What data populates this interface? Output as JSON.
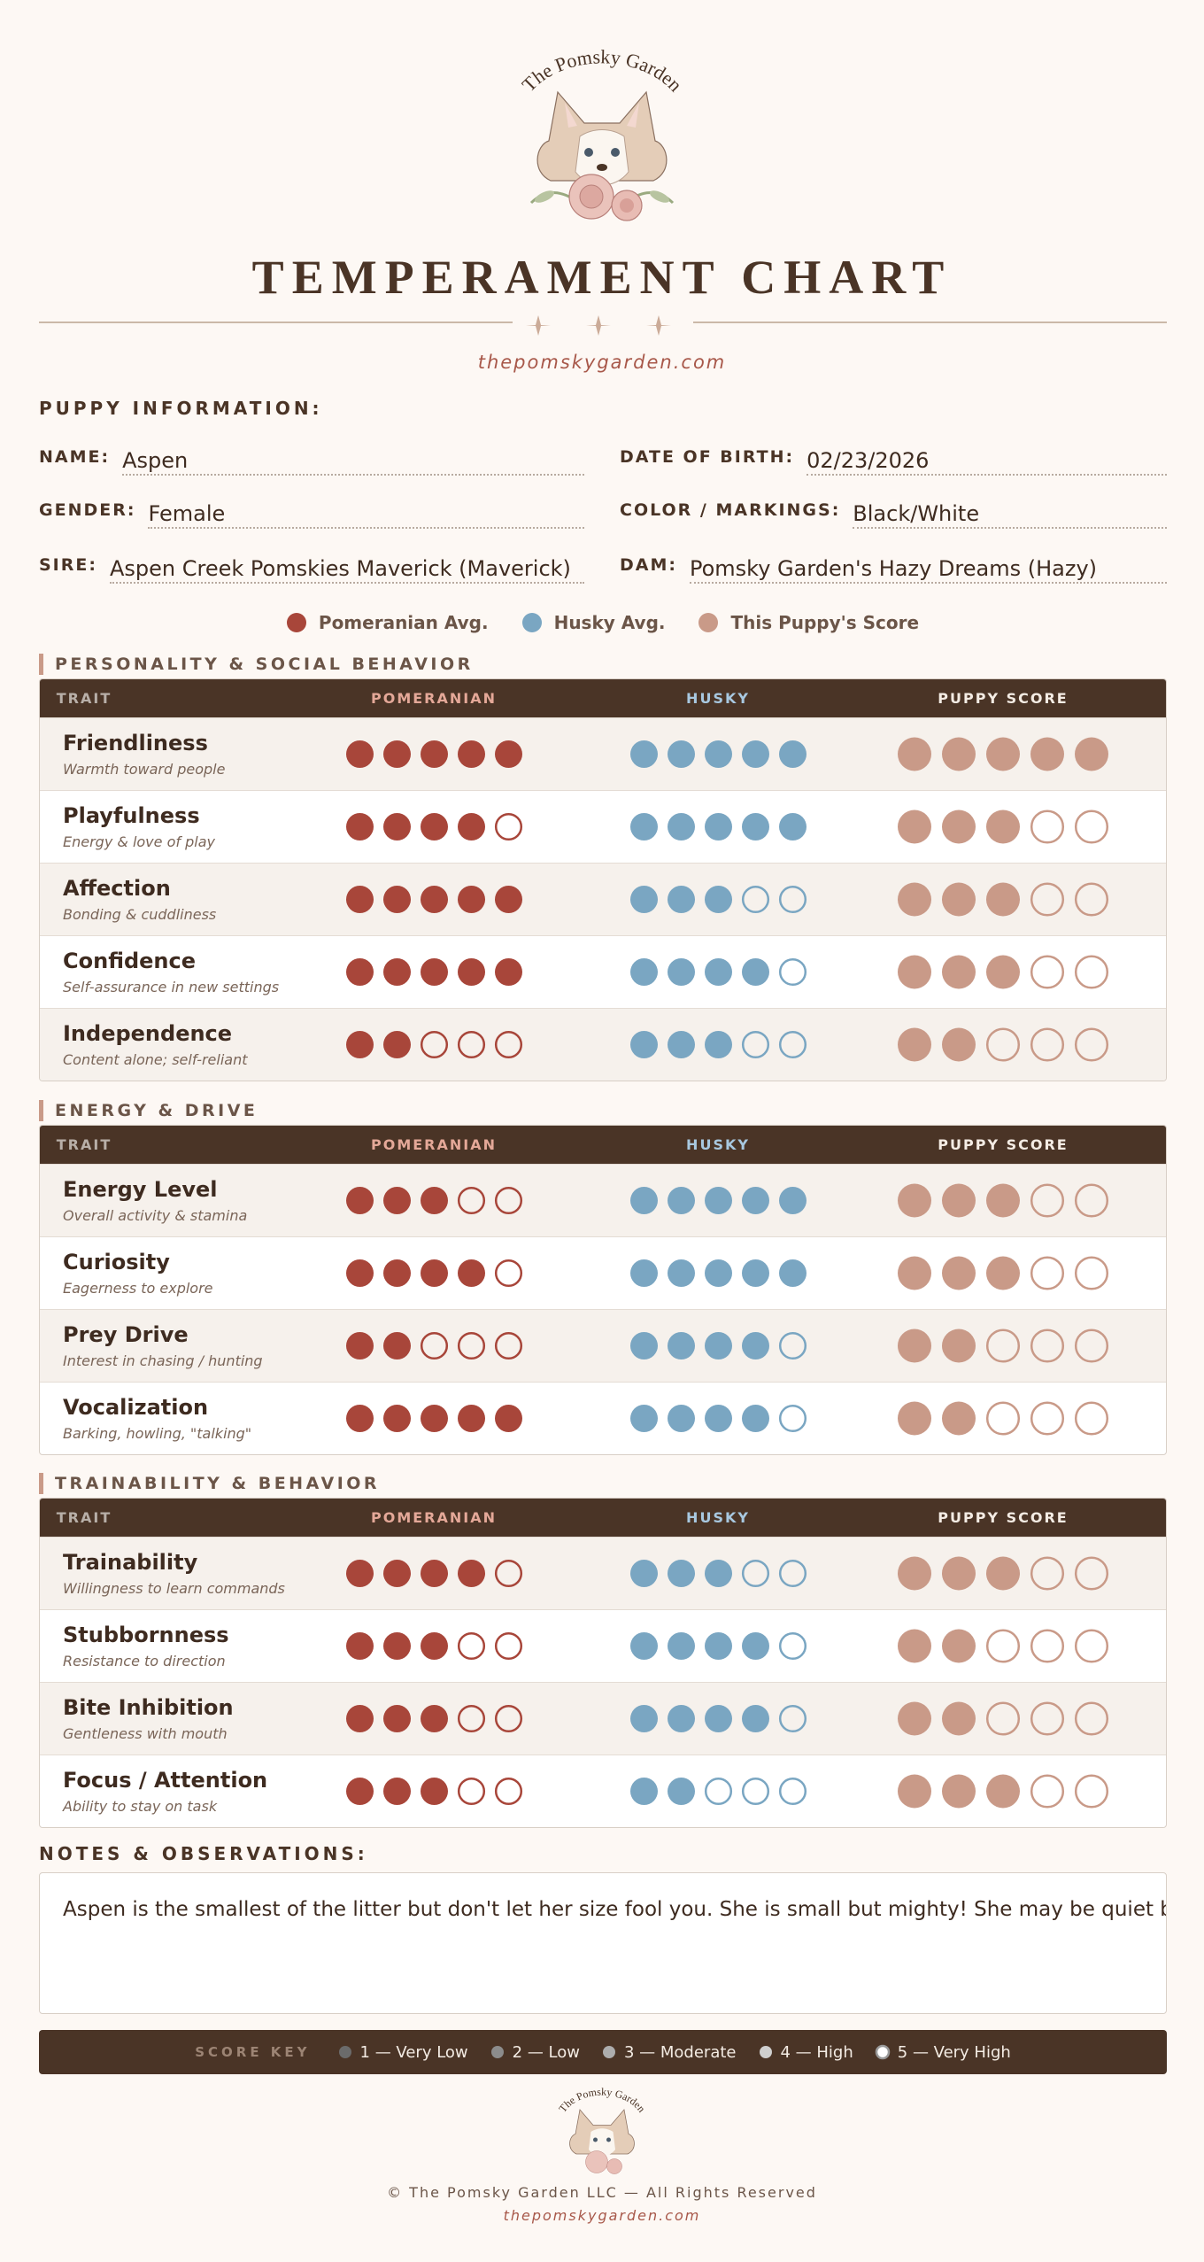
{
  "header": {
    "logo_text": "The Pomsky Garden",
    "title": "TEMPERAMENT CHART",
    "website": "thepomskygarden.com"
  },
  "puppy_info": {
    "heading": "PUPPY INFORMATION:",
    "fields": [
      {
        "label": "NAME:",
        "value": "Aspen"
      },
      {
        "label": "DATE OF BIRTH:",
        "value": "02/23/2026"
      },
      {
        "label": "GENDER:",
        "value": "Female"
      },
      {
        "label": "COLOR / MARKINGS:",
        "value": "Black/White"
      },
      {
        "label": "SIRE:",
        "value": "Aspen Creek Pomskies Maverick (Maverick)"
      },
      {
        "label": "DAM:",
        "value": "Pomsky Garden's Hazy Dreams (Hazy)"
      }
    ]
  },
  "legend": [
    {
      "name": "Pomeranian Avg.",
      "color": "#a8463a"
    },
    {
      "name": "Husky Avg.",
      "color": "#7aa6c2"
    },
    {
      "name": "This Puppy's Score",
      "color": "#c99a88"
    }
  ],
  "columns": [
    "TRAIT",
    "POMERANIAN",
    "HUSKY",
    "PUPPY SCORE"
  ],
  "sections": [
    {
      "title": "PERSONALITY & SOCIAL BEHAVIOR",
      "traits": [
        {
          "name": "Friendliness",
          "description": "Warmth toward people",
          "pomeranian": 5,
          "husky": 5,
          "puppy": 5
        },
        {
          "name": "Playfulness",
          "description": "Energy & love of play",
          "pomeranian": 4,
          "husky": 5,
          "puppy": 3
        },
        {
          "name": "Affection",
          "description": "Bonding & cuddliness",
          "pomeranian": 5,
          "husky": 3,
          "puppy": 3
        },
        {
          "name": "Confidence",
          "description": "Self-assurance in new settings",
          "pomeranian": 5,
          "husky": 4,
          "puppy": 3
        },
        {
          "name": "Independence",
          "description": "Content alone; self-reliant",
          "pomeranian": 2,
          "husky": 3,
          "puppy": 2
        }
      ]
    },
    {
      "title": "ENERGY & DRIVE",
      "traits": [
        {
          "name": "Energy Level",
          "description": "Overall activity & stamina",
          "pomeranian": 3,
          "husky": 5,
          "puppy": 3
        },
        {
          "name": "Curiosity",
          "description": "Eagerness to explore",
          "pomeranian": 4,
          "husky": 5,
          "puppy": 3
        },
        {
          "name": "Prey Drive",
          "description": "Interest in chasing / hunting",
          "pomeranian": 2,
          "husky": 4,
          "puppy": 2
        },
        {
          "name": "Vocalization",
          "description": "Barking, howling, \"talking\"",
          "pomeranian": 5,
          "husky": 4,
          "puppy": 2
        }
      ]
    },
    {
      "title": "TRAINABILITY & BEHAVIOR",
      "traits": [
        {
          "name": "Trainability",
          "description": "Willingness to learn commands",
          "pomeranian": 4,
          "husky": 3,
          "puppy": 3
        },
        {
          "name": "Stubbornness",
          "description": "Resistance to direction",
          "pomeranian": 3,
          "husky": 4,
          "puppy": 2
        },
        {
          "name": "Bite Inhibition",
          "description": "Gentleness with mouth",
          "pomeranian": 3,
          "husky": 4,
          "puppy": 2
        },
        {
          "name": "Focus / Attention",
          "description": "Ability to stay on task",
          "pomeranian": 3,
          "husky": 2,
          "puppy": 3
        }
      ]
    }
  ],
  "notes": {
    "heading": "NOTES & OBSERVATIONS:",
    "text": "Aspen is the smallest of the litter but don't let her size fool you. She is small but mighty! She may be quiet but holds her"
  },
  "score_key": {
    "title": "SCORE KEY",
    "items": [
      {
        "label": "1 — Very Low",
        "color": "#6b6b6b"
      },
      {
        "label": "2 — Low",
        "color": "#8c8c8c"
      },
      {
        "label": "3 — Moderate",
        "color": "#adadad"
      },
      {
        "label": "4 — High",
        "color": "#cfcfcf"
      },
      {
        "label": "5 — Very High",
        "color": "#ffffff"
      }
    ]
  },
  "footer": {
    "logo_text": "The Pomsky Garden",
    "copyright": "© The Pomsky Garden LLC — All Rights Reserved",
    "website": "thepomskygarden.com"
  }
}
